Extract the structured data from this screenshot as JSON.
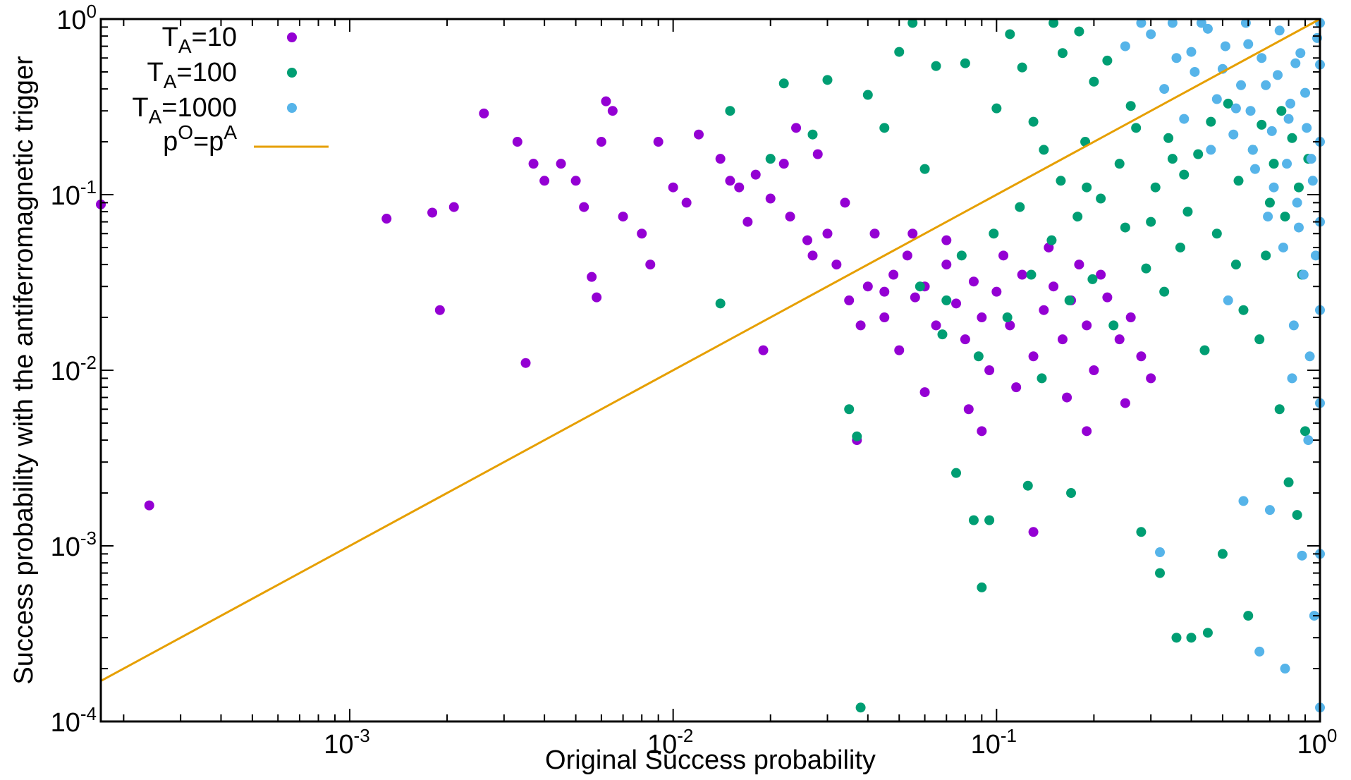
{
  "chart_data": {
    "type": "scatter",
    "title": "",
    "xlabel": "Original Success probability",
    "ylabel": "Success probability with the antiferromagnetic trigger",
    "xscale": "log",
    "yscale": "log",
    "xlim": [
      0.00017,
      1
    ],
    "ylim": [
      0.0001,
      1
    ],
    "grid": false,
    "legend_position": "top-left",
    "x_ticks": [
      {
        "base": "10",
        "exp": "-3",
        "value": 0.001
      },
      {
        "base": "10",
        "exp": "-2",
        "value": 0.01
      },
      {
        "base": "10",
        "exp": "-1",
        "value": 0.1
      },
      {
        "base": "10",
        "exp": "0",
        "value": 1
      }
    ],
    "y_ticks": [
      {
        "base": "10",
        "exp": "-4",
        "value": 0.0001
      },
      {
        "base": "10",
        "exp": "-3",
        "value": 0.001
      },
      {
        "base": "10",
        "exp": "-2",
        "value": 0.01
      },
      {
        "base": "10",
        "exp": "-1",
        "value": 0.1
      },
      {
        "base": "10",
        "exp": "0",
        "value": 1
      }
    ],
    "series": [
      {
        "name": "T_A=10",
        "legend": {
          "main": "T",
          "sub": "A",
          "rest": "=10"
        },
        "color": "#9400D3",
        "marker": "circle",
        "points": [
          [
            0.00017,
            0.088
          ],
          [
            0.00024,
            0.0017
          ],
          [
            0.0013,
            0.073
          ],
          [
            0.0018,
            0.079
          ],
          [
            0.0019,
            0.022
          ],
          [
            0.0021,
            0.085
          ],
          [
            0.0026,
            0.29
          ],
          [
            0.0033,
            0.2
          ],
          [
            0.0035,
            0.011
          ],
          [
            0.0037,
            0.15
          ],
          [
            0.004,
            0.12
          ],
          [
            0.0045,
            0.15
          ],
          [
            0.005,
            0.12
          ],
          [
            0.0053,
            0.085
          ],
          [
            0.0056,
            0.034
          ],
          [
            0.0058,
            0.026
          ],
          [
            0.006,
            0.2
          ],
          [
            0.0062,
            0.34
          ],
          [
            0.0065,
            0.3
          ],
          [
            0.007,
            0.075
          ],
          [
            0.008,
            0.06
          ],
          [
            0.0085,
            0.04
          ],
          [
            0.009,
            0.2
          ],
          [
            0.01,
            0.11
          ],
          [
            0.011,
            0.09
          ],
          [
            0.012,
            0.22
          ],
          [
            0.014,
            0.16
          ],
          [
            0.016,
            0.11
          ],
          [
            0.017,
            0.07
          ],
          [
            0.018,
            0.13
          ],
          [
            0.019,
            0.013
          ],
          [
            0.02,
            0.095
          ],
          [
            0.022,
            0.15
          ],
          [
            0.024,
            0.24
          ],
          [
            0.026,
            0.055
          ],
          [
            0.028,
            0.17
          ],
          [
            0.03,
            0.06
          ],
          [
            0.032,
            0.04
          ],
          [
            0.034,
            0.09
          ],
          [
            0.035,
            0.025
          ],
          [
            0.037,
            0.004
          ],
          [
            0.04,
            0.03
          ],
          [
            0.042,
            0.06
          ],
          [
            0.045,
            0.02
          ],
          [
            0.048,
            0.035
          ],
          [
            0.05,
            0.013
          ],
          [
            0.053,
            0.045
          ],
          [
            0.056,
            0.026
          ],
          [
            0.06,
            0.03
          ],
          [
            0.065,
            0.018
          ],
          [
            0.07,
            0.04
          ],
          [
            0.075,
            0.024
          ],
          [
            0.08,
            0.015
          ],
          [
            0.085,
            0.032
          ],
          [
            0.09,
            0.02
          ],
          [
            0.095,
            0.01
          ],
          [
            0.1,
            0.028
          ],
          [
            0.11,
            0.018
          ],
          [
            0.12,
            0.035
          ],
          [
            0.13,
            0.012
          ],
          [
            0.14,
            0.022
          ],
          [
            0.15,
            0.03
          ],
          [
            0.16,
            0.015
          ],
          [
            0.17,
            0.025
          ],
          [
            0.18,
            0.04
          ],
          [
            0.19,
            0.018
          ],
          [
            0.2,
            0.01
          ],
          [
            0.22,
            0.026
          ],
          [
            0.24,
            0.015
          ],
          [
            0.26,
            0.02
          ],
          [
            0.28,
            0.012
          ],
          [
            0.3,
            0.009
          ],
          [
            0.13,
            0.0012
          ],
          [
            0.09,
            0.0045
          ],
          [
            0.06,
            0.0075
          ],
          [
            0.045,
            0.028
          ],
          [
            0.038,
            0.018
          ],
          [
            0.027,
            0.045
          ],
          [
            0.023,
            0.075
          ],
          [
            0.015,
            0.12
          ],
          [
            0.055,
            0.06
          ],
          [
            0.07,
            0.055
          ],
          [
            0.105,
            0.045
          ],
          [
            0.145,
            0.05
          ],
          [
            0.21,
            0.035
          ],
          [
            0.115,
            0.008
          ],
          [
            0.082,
            0.006
          ],
          [
            0.165,
            0.007
          ],
          [
            0.25,
            0.0065
          ],
          [
            0.19,
            0.0045
          ]
        ]
      },
      {
        "name": "T_A=100",
        "legend": {
          "main": "T",
          "sub": "A",
          "rest": "=100"
        },
        "color": "#009E73",
        "marker": "circle",
        "points": [
          [
            0.014,
            0.024
          ],
          [
            0.015,
            0.3
          ],
          [
            0.02,
            0.16
          ],
          [
            0.022,
            0.43
          ],
          [
            0.027,
            0.22
          ],
          [
            0.03,
            0.45
          ],
          [
            0.035,
            0.006
          ],
          [
            0.037,
            0.0042
          ],
          [
            0.038,
            0.00012
          ],
          [
            0.04,
            0.37
          ],
          [
            0.045,
            0.24
          ],
          [
            0.05,
            0.65
          ],
          [
            0.055,
            0.95
          ],
          [
            0.06,
            0.14
          ],
          [
            0.065,
            0.54
          ],
          [
            0.07,
            0.025
          ],
          [
            0.075,
            0.0026
          ],
          [
            0.08,
            0.56
          ],
          [
            0.085,
            0.0014
          ],
          [
            0.09,
            0.00058
          ],
          [
            0.095,
            0.0014
          ],
          [
            0.1,
            0.31
          ],
          [
            0.11,
            0.82
          ],
          [
            0.12,
            0.53
          ],
          [
            0.125,
            0.0022
          ],
          [
            0.13,
            0.26
          ],
          [
            0.14,
            0.18
          ],
          [
            0.15,
            0.95
          ],
          [
            0.16,
            0.64
          ],
          [
            0.17,
            0.002
          ],
          [
            0.18,
            0.85
          ],
          [
            0.19,
            0.11
          ],
          [
            0.2,
            0.44
          ],
          [
            0.22,
            0.58
          ],
          [
            0.24,
            0.15
          ],
          [
            0.26,
            0.32
          ],
          [
            0.28,
            0.0012
          ],
          [
            0.3,
            0.07
          ],
          [
            0.32,
            0.0007
          ],
          [
            0.34,
            0.21
          ],
          [
            0.36,
            0.0003
          ],
          [
            0.38,
            0.13
          ],
          [
            0.4,
            0.0003
          ],
          [
            0.45,
            0.00032
          ],
          [
            0.5,
            0.0009
          ],
          [
            0.55,
            0.04
          ],
          [
            0.6,
            0.0004
          ],
          [
            0.65,
            0.015
          ],
          [
            0.7,
            0.09
          ],
          [
            0.75,
            0.006
          ],
          [
            0.8,
            0.0023
          ],
          [
            0.85,
            0.0015
          ],
          [
            0.9,
            0.0045
          ],
          [
            0.058,
            0.03
          ],
          [
            0.068,
            0.016
          ],
          [
            0.078,
            0.045
          ],
          [
            0.088,
            0.012
          ],
          [
            0.098,
            0.06
          ],
          [
            0.108,
            0.02
          ],
          [
            0.118,
            0.085
          ],
          [
            0.128,
            0.035
          ],
          [
            0.138,
            0.009
          ],
          [
            0.148,
            0.055
          ],
          [
            0.158,
            0.12
          ],
          [
            0.168,
            0.025
          ],
          [
            0.178,
            0.075
          ],
          [
            0.188,
            0.2
          ],
          [
            0.198,
            0.033
          ],
          [
            0.21,
            0.095
          ],
          [
            0.23,
            0.018
          ],
          [
            0.25,
            0.065
          ],
          [
            0.27,
            0.24
          ],
          [
            0.29,
            0.038
          ],
          [
            0.31,
            0.11
          ],
          [
            0.33,
            0.028
          ],
          [
            0.35,
            0.16
          ],
          [
            0.37,
            0.05
          ],
          [
            0.39,
            0.08
          ],
          [
            0.42,
            0.17
          ],
          [
            0.44,
            0.013
          ],
          [
            0.46,
            0.26
          ],
          [
            0.48,
            0.06
          ],
          [
            0.52,
            0.33
          ],
          [
            0.56,
            0.12
          ],
          [
            0.58,
            0.022
          ],
          [
            0.62,
            0.18
          ],
          [
            0.66,
            0.25
          ],
          [
            0.68,
            0.045
          ],
          [
            0.72,
            0.15
          ],
          [
            0.76,
            0.3
          ],
          [
            0.78,
            0.075
          ],
          [
            0.82,
            0.21
          ],
          [
            0.86,
            0.11
          ],
          [
            0.88,
            0.035
          ],
          [
            0.92,
            0.16
          ]
        ]
      },
      {
        "name": "T_A=1000",
        "legend": {
          "main": "T",
          "sub": "A",
          "rest": "=1000"
        },
        "color": "#56B4E9",
        "marker": "circle",
        "points": [
          [
            0.3,
            0.82
          ],
          [
            0.32,
            0.00092
          ],
          [
            0.35,
            0.95
          ],
          [
            0.4,
            0.65
          ],
          [
            0.45,
            0.88
          ],
          [
            0.5,
            0.52
          ],
          [
            0.52,
            0.025
          ],
          [
            0.55,
            0.31
          ],
          [
            0.58,
            0.0018
          ],
          [
            0.6,
            0.72
          ],
          [
            0.62,
            0.18
          ],
          [
            0.65,
            0.00025
          ],
          [
            0.68,
            0.42
          ],
          [
            0.7,
            0.0016
          ],
          [
            0.72,
            0.11
          ],
          [
            0.75,
            0.86
          ],
          [
            0.78,
            0.0002
          ],
          [
            0.8,
            0.27
          ],
          [
            0.82,
            0.009
          ],
          [
            0.84,
            0.56
          ],
          [
            0.86,
            0.065
          ],
          [
            0.88,
            0.00088
          ],
          [
            0.9,
            0.38
          ],
          [
            0.92,
            0.004
          ],
          [
            0.94,
            0.16
          ],
          [
            0.96,
            0.0004
          ],
          [
            0.98,
            0.78
          ],
          [
            1.0,
            0.00012
          ],
          [
            1.0,
            0.0009
          ],
          [
            1.0,
            0.0065
          ],
          [
            1.0,
            0.022
          ],
          [
            1.0,
            0.07
          ],
          [
            1.0,
            0.2
          ],
          [
            1.0,
            0.55
          ],
          [
            1.0,
            0.95
          ],
          [
            0.97,
            0.045
          ],
          [
            0.95,
            0.12
          ],
          [
            0.93,
            0.012
          ],
          [
            0.91,
            0.24
          ],
          [
            0.89,
            0.035
          ],
          [
            0.87,
            0.64
          ],
          [
            0.85,
            0.09
          ],
          [
            0.83,
            0.018
          ],
          [
            0.81,
            0.33
          ],
          [
            0.79,
            0.15
          ],
          [
            0.77,
            0.05
          ],
          [
            0.74,
            0.48
          ],
          [
            0.71,
            0.23
          ],
          [
            0.69,
            0.075
          ],
          [
            0.66,
            0.6
          ],
          [
            0.63,
            0.14
          ],
          [
            0.61,
            0.3
          ],
          [
            0.59,
            0.95
          ],
          [
            0.57,
            0.42
          ],
          [
            0.54,
            0.22
          ],
          [
            0.51,
            0.7
          ],
          [
            0.48,
            0.35
          ],
          [
            0.46,
            0.18
          ],
          [
            0.43,
            0.95
          ],
          [
            0.41,
            0.5
          ],
          [
            0.38,
            0.27
          ],
          [
            0.36,
            0.6
          ],
          [
            0.33,
            0.4
          ],
          [
            0.28,
            0.95
          ],
          [
            0.25,
            0.7
          ]
        ]
      },
      {
        "name": "p^O=p^A",
        "legend": {
          "main": "p",
          "sup1": "O",
          "mid": "=p",
          "sup2": "A"
        },
        "color": "#E69F00",
        "type": "line",
        "points": [
          [
            0.00017,
            0.00017
          ],
          [
            1,
            1
          ]
        ]
      }
    ]
  }
}
